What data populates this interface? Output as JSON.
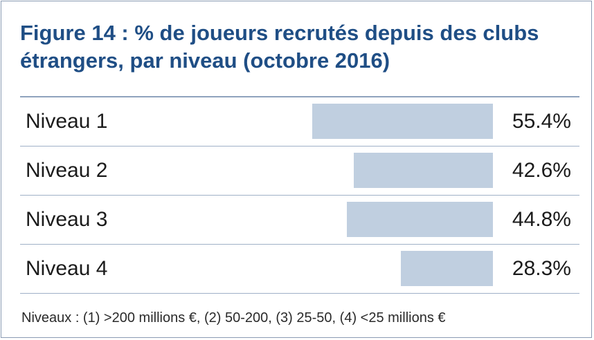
{
  "chart_data": {
    "type": "bar",
    "title": "Figure 14 : % de joueurs recrutés depuis des clubs étrangers, par niveau (octobre 2016)",
    "categories": [
      "Niveau 1",
      "Niveau 2",
      "Niveau 3",
      "Niveau 4"
    ],
    "values": [
      55.4,
      42.6,
      44.8,
      28.3
    ],
    "value_labels": [
      "55.4%",
      "42.6%",
      "44.8%",
      "28.3%"
    ],
    "unit": "%",
    "orientation": "horizontal",
    "bar_direction": "right-aligned",
    "bar_color": "#c0cfe0",
    "grid": false,
    "note": "Niveaux : (1) >200 millions €, (2) 50-200, (3) 25-50, (4) <25 millions €"
  },
  "colors": {
    "title": "#1f4e85",
    "border": "#8a9bb3",
    "rule": "#9fb0c7"
  }
}
